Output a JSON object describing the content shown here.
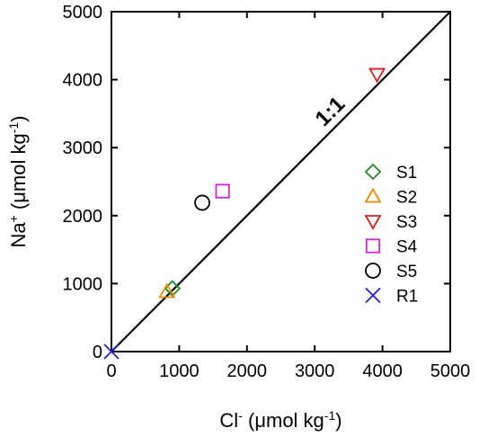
{
  "chart_data": {
    "type": "scatter",
    "title": "",
    "xlabel": {
      "base": "Cl",
      "sup": "-",
      "unit": " (μmol kg",
      "unit_sup": "-1",
      "close": ")"
    },
    "ylabel": {
      "base": "Na",
      "sup": "+",
      "unit": " (μmol kg",
      "unit_sup": "-1",
      "close": ")"
    },
    "xlim": [
      0,
      5000
    ],
    "ylim": [
      0,
      5000
    ],
    "x_ticks": [
      "0",
      "1000",
      "2000",
      "3000",
      "4000",
      "5000"
    ],
    "y_ticks": [
      "0",
      "1000",
      "2000",
      "3000",
      "4000",
      "5000"
    ],
    "grid": false,
    "legend_position": "right",
    "reference_line": {
      "label": "1:1",
      "from": [
        0,
        0
      ],
      "to": [
        5000,
        5000
      ],
      "label_at": [
        3300,
        3460
      ]
    },
    "series": [
      {
        "name": "S1",
        "marker": "diamond",
        "color": "#1a8f1a",
        "points": [
          [
            900,
            930
          ]
        ]
      },
      {
        "name": "S2",
        "marker": "triangle-up",
        "color": "#f08a00",
        "points": [
          [
            820,
            880
          ]
        ]
      },
      {
        "name": "S3",
        "marker": "triangle-down",
        "color": "#e31a1c",
        "points": [
          [
            3920,
            4080
          ]
        ]
      },
      {
        "name": "S4",
        "marker": "square",
        "color": "#e21de2",
        "points": [
          [
            1640,
            2360
          ]
        ]
      },
      {
        "name": "S5",
        "marker": "circle",
        "color": "#000000",
        "points": [
          [
            1340,
            2190
          ]
        ]
      },
      {
        "name": "R1",
        "marker": "x",
        "color": "#1f1fd8",
        "points": [
          [
            0,
            0
          ]
        ]
      }
    ]
  }
}
